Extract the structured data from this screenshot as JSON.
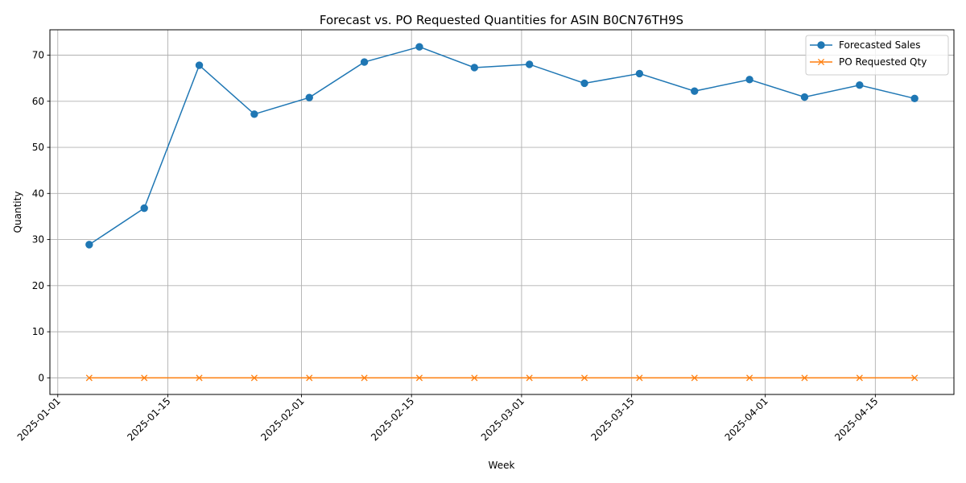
{
  "chart_data": {
    "type": "line",
    "title": "Forecast vs. PO Requested Quantities for ASIN B0CN76TH9S",
    "xlabel": "Week",
    "ylabel": "Quantity",
    "x": [
      "2025-01-05",
      "2025-01-12",
      "2025-01-19",
      "2025-01-26",
      "2025-02-02",
      "2025-02-09",
      "2025-02-16",
      "2025-02-23",
      "2025-03-02",
      "2025-03-09",
      "2025-03-16",
      "2025-03-23",
      "2025-03-30",
      "2025-04-06",
      "2025-04-13",
      "2025-04-20"
    ],
    "x_ticks": [
      "2025-01-01",
      "2025-01-15",
      "2025-02-01",
      "2025-02-15",
      "2025-03-01",
      "2025-03-15",
      "2025-04-01",
      "2025-04-15"
    ],
    "xlim": [
      "2024-12-31",
      "2025-04-25"
    ],
    "y_ticks": [
      0,
      10,
      20,
      30,
      40,
      50,
      60,
      70
    ],
    "ylim": [
      -3.6,
      75.5
    ],
    "grid": true,
    "legend_position": "top-right",
    "series": [
      {
        "name": "Forecasted Sales",
        "color": "#1f77b4",
        "marker": "circle",
        "values": [
          28.9,
          36.8,
          67.8,
          57.2,
          60.8,
          68.5,
          71.8,
          67.3,
          68.0,
          63.9,
          66.0,
          62.2,
          64.7,
          60.9,
          63.5,
          60.6
        ]
      },
      {
        "name": "PO Requested Qty",
        "color": "#ff7f0e",
        "marker": "x",
        "values": [
          0,
          0,
          0,
          0,
          0,
          0,
          0,
          0,
          0,
          0,
          0,
          0,
          0,
          0,
          0,
          0
        ]
      }
    ]
  }
}
